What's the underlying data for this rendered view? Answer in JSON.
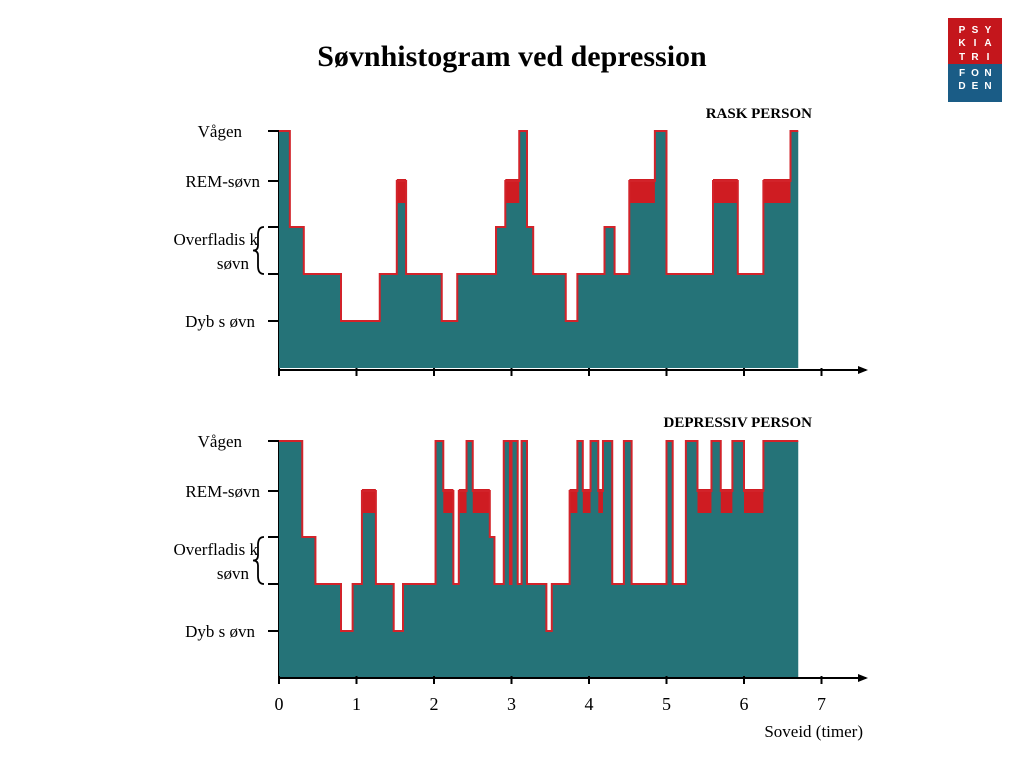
{
  "title": "Søvnhistogram ved depression",
  "logo": {
    "rows_top": [
      [
        "P",
        "S",
        "Y"
      ],
      [
        "K",
        "I",
        "A"
      ],
      [
        "T",
        "R",
        "I"
      ]
    ],
    "rows_bottom": [
      [
        "F",
        "O",
        "N"
      ],
      [
        "D",
        "E",
        "N"
      ]
    ]
  },
  "chart_data": [
    {
      "type": "area",
      "subtitle": "RASK PERSON",
      "y_levels": [
        "Vågen",
        "REM-søvn",
        "Overfladisk søvn",
        "Dyb søvn"
      ],
      "y_labels": {
        "wake": "Vågen",
        "rem": "REM-søvn",
        "light_1": "Overfladis k",
        "light_2": "søvn",
        "deep": "Dyb s øvn"
      },
      "x_range": [
        0,
        7.5
      ],
      "stage_codes": {
        "4": "Vågen",
        "3": "REM-søvn",
        "2.8": "Overfladisk søvn (høj)",
        "2": "Overfladisk søvn (lav)",
        "1": "Dyb søvn"
      },
      "steps": [
        {
          "t": 0.0,
          "s": 4
        },
        {
          "t": 0.14,
          "s": 2.8
        },
        {
          "t": 0.32,
          "s": 2
        },
        {
          "t": 0.8,
          "s": 1
        },
        {
          "t": 1.3,
          "s": 2
        },
        {
          "t": 1.52,
          "s": 3
        },
        {
          "t": 1.64,
          "s": 2
        },
        {
          "t": 2.1,
          "s": 1
        },
        {
          "t": 2.3,
          "s": 2
        },
        {
          "t": 2.8,
          "s": 2.8
        },
        {
          "t": 2.92,
          "s": 3
        },
        {
          "t": 3.1,
          "s": 4
        },
        {
          "t": 3.2,
          "s": 2.8
        },
        {
          "t": 3.28,
          "s": 2
        },
        {
          "t": 3.7,
          "s": 1
        },
        {
          "t": 3.85,
          "s": 2
        },
        {
          "t": 4.2,
          "s": 2.8
        },
        {
          "t": 4.33,
          "s": 2
        },
        {
          "t": 4.52,
          "s": 3
        },
        {
          "t": 4.85,
          "s": 4
        },
        {
          "t": 5.0,
          "s": 2
        },
        {
          "t": 5.6,
          "s": 3
        },
        {
          "t": 5.92,
          "s": 2
        },
        {
          "t": 6.25,
          "s": 3
        },
        {
          "t": 6.6,
          "s": 4
        },
        {
          "t": 6.7,
          "s": 0
        }
      ]
    },
    {
      "type": "area",
      "subtitle": "DEPRESSIV PERSON",
      "y_levels": [
        "Vågen",
        "REM-søvn",
        "Overfladisk søvn",
        "Dyb søvn"
      ],
      "y_labels": {
        "wake": "Vågen",
        "rem": "REM-søvn",
        "light_1": "Overfladis k",
        "light_2": "søvn",
        "deep": "Dyb s øvn"
      },
      "x_range": [
        0,
        7.5
      ],
      "x_ticks": [
        "0",
        "1",
        "2",
        "3",
        "4",
        "5",
        "6",
        "7"
      ],
      "xlabel": "Soveid (timer)",
      "steps": [
        {
          "t": 0.0,
          "s": 4
        },
        {
          "t": 0.3,
          "s": 2.8
        },
        {
          "t": 0.47,
          "s": 2
        },
        {
          "t": 0.8,
          "s": 1
        },
        {
          "t": 0.95,
          "s": 2
        },
        {
          "t": 1.07,
          "s": 3
        },
        {
          "t": 1.25,
          "s": 2
        },
        {
          "t": 1.48,
          "s": 1
        },
        {
          "t": 1.6,
          "s": 2
        },
        {
          "t": 2.02,
          "s": 4
        },
        {
          "t": 2.12,
          "s": 3
        },
        {
          "t": 2.25,
          "s": 2
        },
        {
          "t": 2.32,
          "s": 3
        },
        {
          "t": 2.42,
          "s": 4
        },
        {
          "t": 2.5,
          "s": 3
        },
        {
          "t": 2.72,
          "s": 2.8
        },
        {
          "t": 2.78,
          "s": 2
        },
        {
          "t": 2.9,
          "s": 4
        },
        {
          "t": 2.98,
          "s": 2
        },
        {
          "t": 3.0,
          "s": 4
        },
        {
          "t": 3.08,
          "s": 2
        },
        {
          "t": 3.13,
          "s": 4
        },
        {
          "t": 3.2,
          "s": 2
        },
        {
          "t": 3.45,
          "s": 1
        },
        {
          "t": 3.52,
          "s": 2
        },
        {
          "t": 3.75,
          "s": 3
        },
        {
          "t": 3.85,
          "s": 4
        },
        {
          "t": 3.92,
          "s": 3
        },
        {
          "t": 4.02,
          "s": 4
        },
        {
          "t": 4.12,
          "s": 3
        },
        {
          "t": 4.18,
          "s": 4
        },
        {
          "t": 4.3,
          "s": 2
        },
        {
          "t": 4.45,
          "s": 4
        },
        {
          "t": 4.55,
          "s": 2
        },
        {
          "t": 5.0,
          "s": 4
        },
        {
          "t": 5.08,
          "s": 2
        },
        {
          "t": 5.25,
          "s": 4
        },
        {
          "t": 5.4,
          "s": 3
        },
        {
          "t": 5.58,
          "s": 4
        },
        {
          "t": 5.7,
          "s": 3
        },
        {
          "t": 5.85,
          "s": 4
        },
        {
          "t": 6.0,
          "s": 3
        },
        {
          "t": 6.25,
          "s": 4
        },
        {
          "t": 6.7,
          "s": 0
        }
      ]
    }
  ],
  "colors": {
    "fill": "#257378",
    "line": "#d2232a",
    "rem": "#cf1c22",
    "axis": "#000000",
    "logo_red": "#c4161c",
    "logo_blue": "#1a5c86"
  }
}
